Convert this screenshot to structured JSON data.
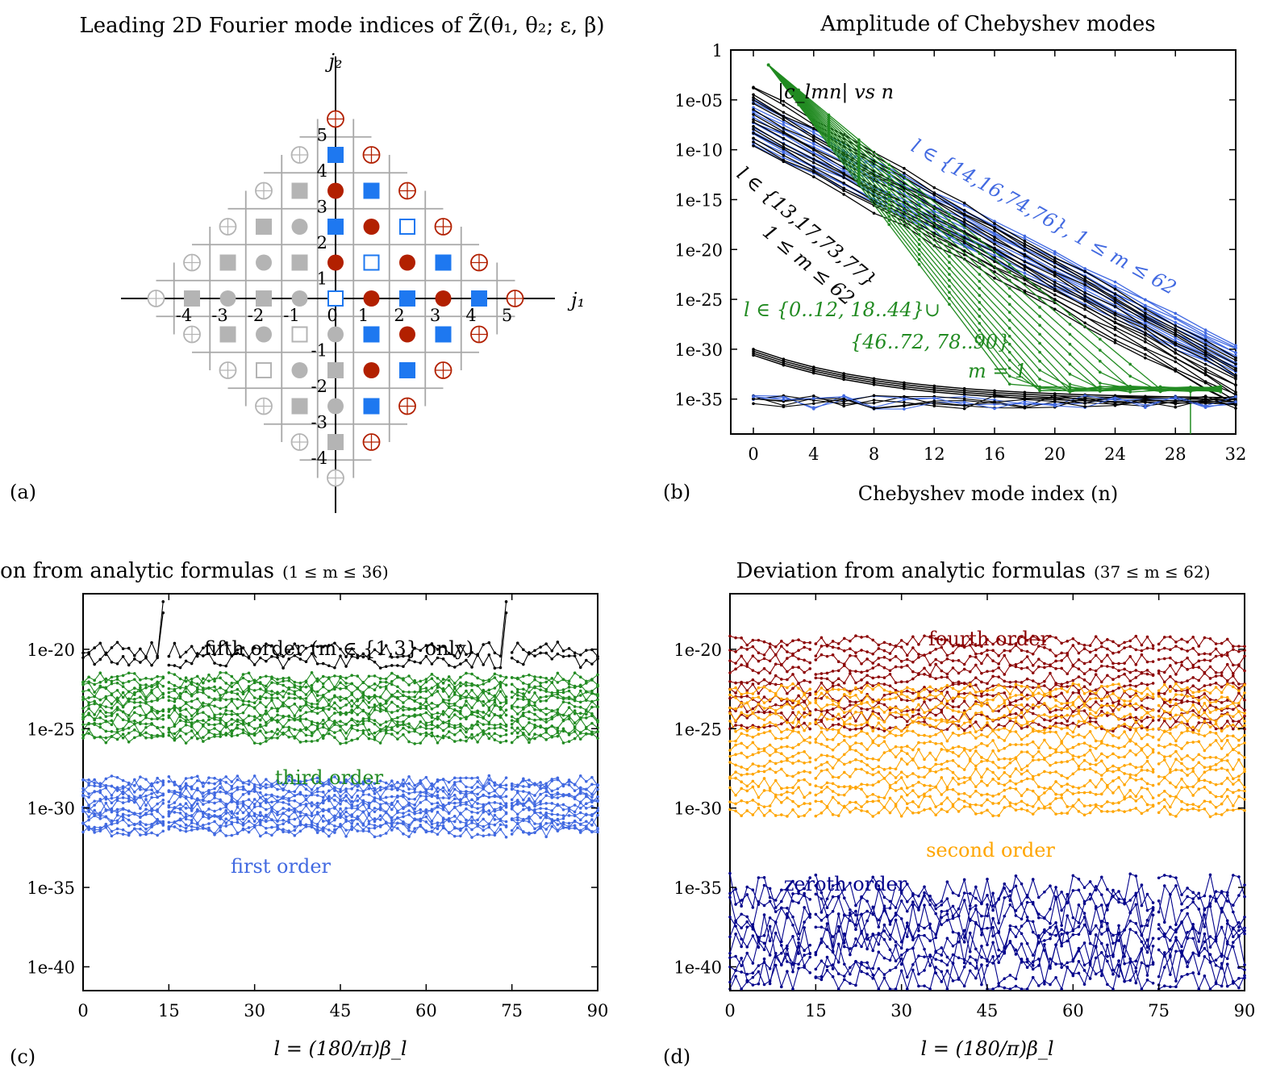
{
  "colors": {
    "black": "#000000",
    "blue": "#4169e1",
    "green": "#228b22",
    "darkred": "#8b0000",
    "orange": "#ffa500",
    "navy": "#00008b",
    "lattice_blue": "#1e78f0",
    "lattice_red": "#b22000",
    "lattice_gray": "#b4b4b4"
  },
  "panel_labels": {
    "a": "(a)",
    "b": "(b)",
    "c": "(c)",
    "d": "(d)"
  },
  "chart_data": [
    {
      "id": "a",
      "type": "scatter",
      "title": "Leading 2D Fourier mode indices of Z̃(θ₁, θ₂; ε, β)",
      "xlabel": "j₁",
      "ylabel": "j₂",
      "x_ticks": [
        "-4",
        "-3",
        "-2",
        "-1",
        "0",
        "1",
        "2",
        "3",
        "4",
        "5"
      ],
      "y_ticks": [
        "5",
        "4",
        "3",
        "2",
        "1",
        "-1",
        "-2",
        "-3",
        "-4"
      ],
      "notes": "Diamond lattice of Fourier modes: filled blue squares and filled red circles in right half-plane, gray mirror images in left half, open circles on the boundary; open blue squares at (0,0), (1,1), (2,2)."
    },
    {
      "id": "b",
      "type": "line",
      "title": "Amplitude of Chebyshev modes",
      "xlabel": "Chebyshev mode index (n)",
      "ylabel": "",
      "x_ticks": [
        "0",
        "4",
        "8",
        "12",
        "16",
        "20",
        "24",
        "28",
        "32"
      ],
      "y_ticks": [
        "1",
        "1e-05",
        "1e-10",
        "1e-15",
        "1e-20",
        "1e-25",
        "1e-30",
        "1e-35"
      ],
      "xlim": [
        -1.5,
        32
      ],
      "ylim_log10": [
        -38.5,
        0
      ],
      "annotations": {
        "top": "|c_lmn| vs n",
        "blue": "l ∈ {14,16,74,76}, 1 ≤ m ≤ 62",
        "black_1": "l ∈ {13,17,73,77}",
        "black_2": "1 ≤ m ≤ 62",
        "green_1": "l ∈ {0..12, 18..44}∪",
        "green_2": "{46..72, 78..90}",
        "green_3": "m = 1"
      },
      "series": [
        {
          "name": "blue: l ∈ {14,16,74,76}",
          "color": "blue",
          "start_log10": [
            -5,
            -10
          ],
          "end_log10": [
            -29.5,
            -33
          ],
          "count": 14
        },
        {
          "name": "black: l ∈ {13,17,73,77}",
          "color": "black",
          "start_log10": [
            -3.5,
            -10
          ],
          "end_log10": [
            -31,
            -36
          ],
          "count": 16
        },
        {
          "name": "green: m = 1",
          "color": "green",
          "start_log10": [
            -1.5,
            -1.5
          ],
          "plateau_log10": -34,
          "count": 16
        },
        {
          "name": "black floor",
          "color": "black",
          "start_log10": [
            -30,
            -30
          ],
          "end_log10": [
            -35,
            -35
          ],
          "count": 4
        },
        {
          "name": "noise floor",
          "color": "mixed",
          "level_log10": -35.5,
          "count": 8
        }
      ]
    },
    {
      "id": "c",
      "type": "line",
      "title": "Deviation from analytic formulas",
      "title_range": "(1 ≤ m ≤ 36)",
      "xlabel": "l = (180/π)β_l",
      "x_ticks": [
        "0",
        "15",
        "30",
        "45",
        "60",
        "75",
        "90"
      ],
      "y_ticks": [
        "1e-20",
        "1e-25",
        "1e-30",
        "1e-35",
        "1e-40"
      ],
      "xlim": [
        0,
        90
      ],
      "ylim_log10": [
        -41.5,
        -16.5
      ],
      "gaps_l": [
        14.5,
        74.5
      ],
      "labels": {
        "fifth": "fifth order (m ∈ {1,3} only)",
        "third": "third order",
        "first": "first order"
      },
      "series": [
        {
          "name": "fifth order",
          "color": "black",
          "band_log10": [
            -20,
            -20.7
          ],
          "count": 2
        },
        {
          "name": "third order",
          "color": "green",
          "band_log10": [
            -21.8,
            -25.6
          ],
          "count": 14
        },
        {
          "name": "first order",
          "color": "blue",
          "band_log10": [
            -28.3,
            -31.5
          ],
          "count": 14
        }
      ]
    },
    {
      "id": "d",
      "type": "line",
      "title": "Deviation from analytic formulas",
      "title_range": "(37 ≤ m ≤ 62)",
      "xlabel": "l = (180/π)β_l",
      "x_ticks": [
        "0",
        "15",
        "30",
        "45",
        "60",
        "75",
        "90"
      ],
      "y_ticks": [
        "1e-20",
        "1e-25",
        "1e-30",
        "1e-35",
        "1e-40"
      ],
      "xlim": [
        0,
        90
      ],
      "ylim_log10": [
        -41.5,
        -16.5
      ],
      "gaps_l": [
        14.5,
        74.5
      ],
      "labels": {
        "fourth": "fourth order",
        "second": "second order",
        "zeroth": "zeroth order"
      },
      "series": [
        {
          "name": "fourth order",
          "color": "darkred",
          "band_log10": [
            -19.5,
            -24.8
          ],
          "count": 10
        },
        {
          "name": "second order",
          "color": "orange",
          "band_log10": [
            -22.5,
            -30.2
          ],
          "count": 14
        },
        {
          "name": "zeroth order",
          "color": "navy",
          "band_log10": [
            -35.2,
            -40.8
          ],
          "count": 10
        }
      ]
    }
  ]
}
